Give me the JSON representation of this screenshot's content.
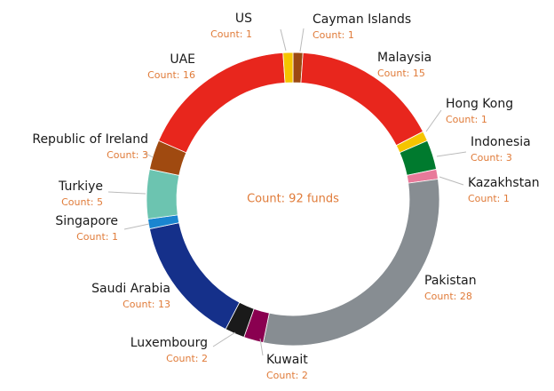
{
  "chart_data": {
    "type": "donut",
    "center_label": "Count: 92 funds",
    "categories": [
      "Cayman Islands",
      "Malaysia",
      "Hong Kong",
      "Indonesia",
      "Kazakhstan",
      "Pakistan",
      "Kuwait",
      "Luxembourg",
      "Saudi Arabia",
      "Singapore",
      "Turkiye",
      "Republic of Ireland",
      "UAE",
      "US"
    ],
    "values": [
      1,
      15,
      1,
      3,
      1,
      28,
      2,
      2,
      13,
      1,
      5,
      3,
      16,
      1
    ],
    "value_labels": [
      "Count: 1",
      "Count: 15",
      "Count: 1",
      "Count: 3",
      "Count: 1",
      "Count: 28",
      "Count: 2",
      "Count: 2",
      "Count: 13",
      "Count: 1",
      "Count: 5",
      "Count: 3",
      "Count: 16",
      "Count: 1"
    ],
    "colors": [
      "#9c4a12",
      "#e8261d",
      "#f5c400",
      "#007a2e",
      "#e87a9a",
      "#878d92",
      "#8a0050",
      "#1a1a1a",
      "#15308a",
      "#1a85d0",
      "#6cc4b0",
      "#a04a10",
      "#e8261d",
      "#f5c400"
    ]
  }
}
